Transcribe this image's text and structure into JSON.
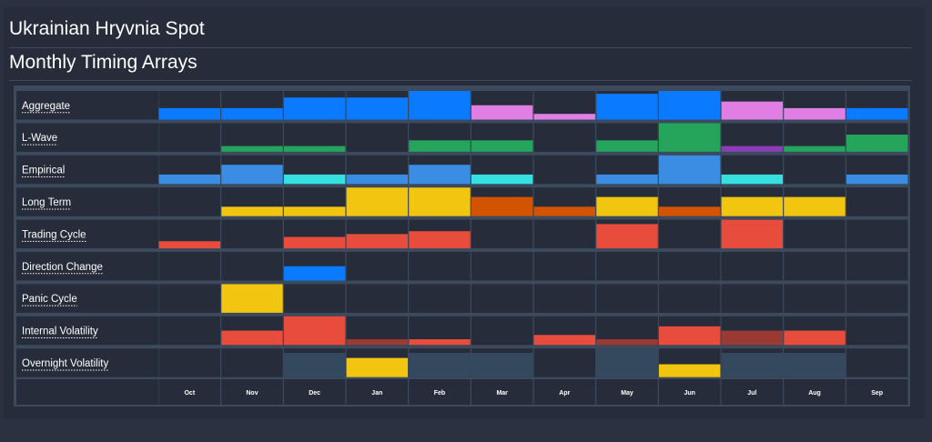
{
  "header": {
    "title": "Ukrainian Hryvnia Spot",
    "subtitle": "Monthly Timing Arrays"
  },
  "colors": {
    "blue": "#0a7bff",
    "light_blue": "#3a8de2",
    "violet": "#e07ee4",
    "green": "#25a45c",
    "purple": "#8a3db5",
    "cyan": "#36e0de",
    "yellow": "#f2c511",
    "orange": "#d35400",
    "red": "#e74c3c",
    "dark_red": "#9b3a34",
    "slate": "#34495e"
  },
  "chart_data": {
    "type": "heatmap",
    "categories": [
      "Oct",
      "Nov",
      "Dec",
      "Jan",
      "Feb",
      "Mar",
      "Apr",
      "May",
      "Jun",
      "Jul",
      "Aug",
      "Sep"
    ],
    "value_range": [
      0,
      1
    ],
    "series": [
      {
        "name": "Aggregate",
        "values": [
          0.4,
          0.4,
          0.77,
          0.77,
          1.0,
          0.5,
          0.2,
          0.9,
          1.0,
          0.63,
          0.4,
          0.4
        ],
        "colors": [
          "blue",
          "blue",
          "blue",
          "blue",
          "blue",
          "violet",
          "violet",
          "blue",
          "blue",
          "violet",
          "violet",
          "blue"
        ]
      },
      {
        "name": "L-Wave",
        "values": [
          0,
          0.2,
          0.2,
          0,
          0.4,
          0.4,
          0,
          0.4,
          1.0,
          0.2,
          0.2,
          0.6
        ],
        "colors": [
          null,
          "green",
          "green",
          null,
          "green",
          "green",
          null,
          "green",
          "green",
          "purple",
          "green",
          "green"
        ]
      },
      {
        "name": "Empirical",
        "values": [
          0.33,
          0.67,
          0.33,
          0.33,
          0.67,
          0.33,
          0,
          0.33,
          1.0,
          0.33,
          0,
          0.33
        ],
        "colors": [
          "light_blue",
          "light_blue",
          "cyan",
          "light_blue",
          "light_blue",
          "cyan",
          null,
          "light_blue",
          "light_blue",
          "cyan",
          null,
          "light_blue"
        ]
      },
      {
        "name": "Long Term",
        "values": [
          0,
          0.33,
          0.33,
          1.0,
          1.0,
          0.67,
          0.33,
          0.67,
          0.33,
          0.67,
          0.67,
          0
        ],
        "colors": [
          null,
          "yellow",
          "yellow",
          "yellow",
          "yellow",
          "orange",
          "orange",
          "yellow",
          "orange",
          "yellow",
          "yellow",
          null
        ]
      },
      {
        "name": "Trading Cycle",
        "values": [
          0.25,
          0,
          0.4,
          0.5,
          0.6,
          0,
          0,
          0.85,
          0,
          1.0,
          0,
          0
        ],
        "colors": [
          "red",
          null,
          "red",
          "red",
          "red",
          null,
          null,
          "red",
          null,
          "red",
          null,
          null
        ]
      },
      {
        "name": "Direction Change",
        "values": [
          0,
          0,
          0.5,
          0,
          0,
          0,
          0,
          0,
          0,
          0,
          0,
          0
        ],
        "colors": [
          null,
          null,
          "blue",
          null,
          null,
          null,
          null,
          null,
          null,
          null,
          null,
          null
        ]
      },
      {
        "name": "Panic Cycle",
        "values": [
          0,
          1.0,
          0,
          0,
          0,
          0,
          0,
          0,
          0,
          0,
          0,
          0
        ],
        "colors": [
          null,
          "yellow",
          null,
          null,
          null,
          null,
          null,
          null,
          null,
          null,
          null,
          null
        ]
      },
      {
        "name": "Internal Volatility",
        "values": [
          0,
          0.5,
          1.0,
          0.2,
          0.2,
          0,
          0.35,
          0.2,
          0.65,
          0.5,
          0.5,
          0
        ],
        "colors": [
          null,
          "red",
          "red",
          "dark_red",
          "red",
          null,
          "red",
          "dark_red",
          "red",
          "dark_red",
          "red",
          null
        ]
      },
      {
        "name": "Overnight Volatility",
        "values": [
          0,
          0,
          0.85,
          0.67,
          0.85,
          0.85,
          0,
          1.0,
          0.45,
          0.85,
          0.85,
          0
        ],
        "colors": [
          null,
          null,
          "slate",
          "yellow",
          "slate",
          "slate",
          null,
          "slate",
          "yellow",
          "slate",
          "slate",
          null
        ]
      }
    ]
  }
}
